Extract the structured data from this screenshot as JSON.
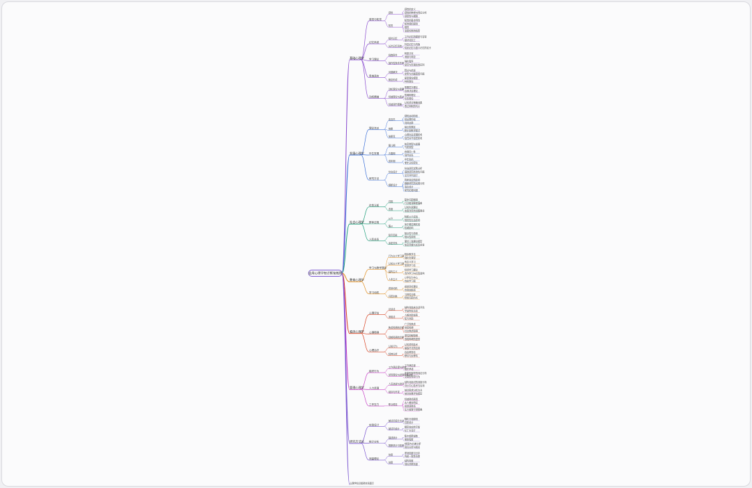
{
  "mindmap": {
    "root": "应用心理学知识框架梳理",
    "footer": "心理学知识框架体系图示",
    "branches": [
      {
        "label": "基础心理学",
        "color": "#8a4ccf",
        "children": [
          {
            "label": "感觉与知觉",
            "children": [
              {
                "label": "感觉",
                "leaves": [
                  "感觉的定义",
                  "感觉的种类与特征分析",
                  "感受性与阈限"
                ]
              },
              {
                "label": "知觉",
                "leaves": [
                  "知觉的基本特性",
                  "知觉组织原则",
                  "错觉",
                  "深度知觉的线索"
                ]
              }
            ]
          },
          {
            "label": "记忆系统",
            "children": [
              {
                "label": "短时记忆",
                "leaves": [
                  "工作记忆的模型与容量",
                  "组块化加工"
                ]
              },
              {
                "label": "长时记忆系统",
                "leaves": [
                  "外显记忆与内隐",
                  "情景记忆与语义记忆的区分"
                ]
              }
            ]
          },
          {
            "label": "学习理论",
            "children": [
              {
                "label": "经典条件",
                "leaves": [
                  "刺激泛化",
                  "消退与恢复"
                ]
              },
              {
                "label": "操作性条件作用",
                "leaves": [
                  "强化程序",
                  "惩罚与负强化的区别"
                ]
              }
            ]
          },
          {
            "label": "思维语言",
            "children": [
              {
                "label": "问题解决",
                "leaves": [
                  "算法与启发",
                  "定势与功能固着问题"
                ]
              },
              {
                "label": "概念形成",
                "leaves": [
                  "原型理论模型",
                  "样例理论"
                ]
              }
            ]
          },
          {
            "label": "动机情绪",
            "children": [
              {
                "label": "动机理论与需要",
                "leaves": [
                  "需要层次理论",
                  "自我决定理论"
                ]
              },
              {
                "label": "情绪理论与表达",
                "leaves": [
                  "詹姆斯理论",
                  "坎农理论"
                ]
              },
              {
                "label": "情绪调节策略",
                "leaves": [
                  "认知重评策略效果",
                  "表达抑制的代价"
                ]
              }
            ]
          }
        ]
      },
      {
        "label": "发展心理学",
        "color": "#3a6fd8",
        "children": [
          {
            "label": "理论流派",
            "children": [
              {
                "label": "皮亚杰",
                "leaves": [
                  "感知运动阶段",
                  "前运算阶段",
                  "具体运算"
                ]
              },
              {
                "label": "维果",
                "leaves": [
                  "最近发展区",
                  "脚手架教学模式"
                ]
              },
              {
                "label": "埃里克",
                "leaves": [
                  "心理社会发展阶段",
                  "信任对不信任阶段"
                ]
              }
            ]
          },
          {
            "label": "毕生发展",
            "children": [
              {
                "label": "婴儿期",
                "leaves": [
                  "依恋类型与发展",
                  "气质类型"
                ]
              },
              {
                "label": "青春期",
                "leaves": [
                  "自我同一性",
                  "同伴关系"
                ]
              },
              {
                "label": "成年期",
                "leaves": [
                  "中年危机",
                  "老年认知变化"
                ]
              }
            ]
          },
          {
            "label": "研究方法",
            "children": [
              {
                "label": "纵向设计",
                "leaves": [
                  "纵向研究优势分析",
                  "追踪研究的流失问题",
                  "交叉序列设计"
                ]
              },
              {
                "label": "横断设计",
                "leaves": [
                  "同辈效应的影响",
                  "横断研究的优势比较",
                  "混合设计",
                  "研究伦理问题"
                ]
              }
            ]
          }
        ]
      },
      {
        "label": "社会心理学",
        "color": "#1f9e7a",
        "children": [
          {
            "label": "社会认知",
            "children": [
              {
                "label": "归因",
                "leaves": [
                  "基本归因错误",
                  "行动者观察者偏差"
                ]
              },
              {
                "label": "态度",
                "leaves": [
                  "认知失调理论",
                  "态度改变的说服路径"
                ]
              }
            ]
          },
          {
            "label": "群体过程",
            "children": [
              {
                "label": "从众",
                "leaves": [
                  "阿希从众实验",
                  "规范性社会影响"
                ]
              },
              {
                "label": "服从",
                "leaves": [
                  "米尔格拉姆实验",
                  "权威影响"
                ]
              }
            ]
          },
          {
            "label": "人际关系",
            "children": [
              {
                "label": "吸引因素",
                "leaves": [
                  "接近性与熟悉",
                  "相似性原则"
                ]
              },
              {
                "label": "亲密关系",
                "leaves": [
                  "爱情三角理论模型",
                  "依恋风格与关系质量"
                ]
              }
            ]
          }
        ]
      },
      {
        "label": "教育心理学",
        "color": "#e08a16",
        "children": [
          {
            "label": "学习与教学理论",
            "children": [
              {
                "label": "行为主义学习观",
                "leaves": [
                  "程序教学法",
                  "强化在课堂"
                ]
              },
              {
                "label": "认知主义学习观",
                "leaves": [
                  "有意义学习",
                  "发现学习法"
                ]
              },
              {
                "label": "建构主义",
                "leaves": [
                  "情境学习理论",
                  "合作学习与社会建构"
                ]
              },
              {
                "label": "人本主义",
                "leaves": [
                  "以学生为中心",
                  "自由学习观"
                ]
              }
            ]
          },
          {
            "label": "学习动机",
            "children": [
              {
                "label": "成就动机",
                "leaves": [
                  "成就目标理论",
                  "自我效能感"
                ]
              },
              {
                "label": "归因训练",
                "leaves": [
                  "习得性无助",
                  "积极归因方式"
                ]
              }
            ]
          }
        ]
      },
      {
        "label": "临床心理学",
        "color": "#d8401f",
        "children": [
          {
            "label": "心理评估",
            "children": [
              {
                "label": "访谈法",
                "leaves": [
                  "结构化临床访谈评估",
                  "半结构化访谈"
                ]
              },
              {
                "label": "测验法",
                "leaves": [
                  "人格测验量表",
                  "智力测验"
                ]
              }
            ]
          },
          {
            "label": "心理障碍",
            "children": [
              {
                "label": "焦虑障碍的诊断",
                "leaves": [
                  "广泛性焦虑",
                  "惊恐障碍",
                  "社交焦虑障碍"
                ]
              },
              {
                "label": "抑郁障碍的诊断",
                "leaves": [
                  "重性抑郁障碍",
                  "双相障碍的鉴别"
                ]
              }
            ]
          },
          {
            "label": "心理治疗",
            "children": [
              {
                "label": "认知行为",
                "leaves": [
                  "认知重构技术",
                  "暴露疗法的应用"
                ]
              },
              {
                "label": "精神分析",
                "leaves": [
                  "自由联想法",
                  "移情与反移情"
                ]
              }
            ]
          }
        ]
      },
      {
        "label": "管理心理学",
        "color": "#c63fc6",
        "children": [
          {
            "label": "组织行为",
            "children": [
              {
                "label": "工作满意度与绩效",
                "leaves": [
                  "工作满意度",
                  "组织承诺"
                ]
              },
              {
                "label": "领导理论与领导风格分析",
                "leaves": [
                  "变革型领导的特征分析",
                  "交易型领导行为"
                ]
              }
            ]
          },
          {
            "label": "人力资源",
            "children": [
              {
                "label": "人员选拔与测评",
                "leaves": [
                  "结构化面试的效度分析",
                  "评价中心技术与应用"
                ]
              },
              {
                "label": "培训与开发",
                "leaves": [
                  "培训需求分析方法",
                  "培训效果评估模型"
                ]
              }
            ]
          },
          {
            "label": "工作压力",
            "children": [
              {
                "label": "职业倦怠",
                "leaves": [
                  "情绪耗竭表现",
                  "去人格化特征",
                  "成就感降低",
                  "压力管理干预策略"
                ]
              }
            ]
          }
        ]
      },
      {
        "label": "研究方法论",
        "color": "#7a55d0",
        "children": [
          {
            "label": "实验设计",
            "children": [
              {
                "label": "被试间设计方法",
                "leaves": [
                  "随机分组原则",
                  "匹配设计"
                ]
              },
              {
                "label": "被试内设计",
                "leaves": [
                  "顺序效应的平衡",
                  "拉丁方设计"
                ]
              }
            ]
          },
          {
            "label": "统计分析",
            "children": [
              {
                "label": "描述统计",
                "leaves": [
                  "集中趋势量数",
                  "离散程度"
                ]
              },
              {
                "label": "推断统计与检验",
                "leaves": [
                  "t检验与方差分析",
                  "回归分析与相关"
                ]
              }
            ]
          },
          {
            "label": "测量理论",
            "children": [
              {
                "label": "信度",
                "leaves": [
                  "重测信度与分半",
                  "内部一致性系数"
                ]
              },
              {
                "label": "效度",
                "leaves": [
                  "结构效度",
                  "效标关联效度"
                ]
              }
            ]
          }
        ]
      }
    ]
  }
}
